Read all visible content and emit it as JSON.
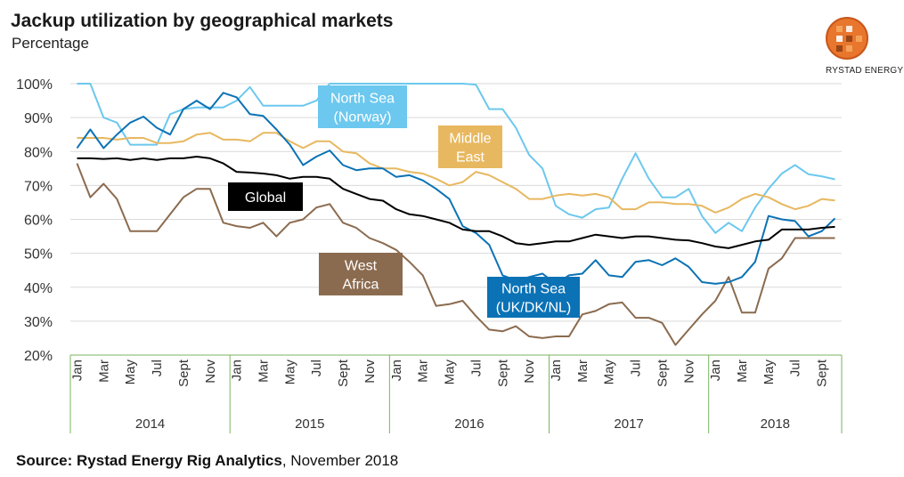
{
  "header": {
    "title": "Jackup utilization by geographical markets",
    "subtitle": "Percentage",
    "logo_text": "RYSTAD ENERGY"
  },
  "footer": {
    "source_bold": "Source: Rystad Energy Rig Analytics",
    "source_rest": ", November 2018"
  },
  "colors": {
    "global": "#000000",
    "north_sea_norway": "#6cc8ee",
    "middle_east": "#e8b860",
    "north_sea_uk": "#0b72b5",
    "west_africa": "#8b6b4f",
    "grid": "#d9d9d9",
    "axis": "#7ab55c"
  },
  "chart_data": {
    "type": "line",
    "title": "Jackup utilization by geographical markets",
    "ylabel": "Percentage",
    "xlabel": "",
    "ylim": [
      20,
      100
    ],
    "yticks": [
      "20%",
      "30%",
      "40%",
      "50%",
      "60%",
      "70%",
      "80%",
      "90%",
      "100%"
    ],
    "grid": true,
    "x_tick_labels": [
      "Jan",
      "Mar",
      "May",
      "Jul",
      "Sept",
      "Nov",
      "Jan",
      "Mar",
      "May",
      "Jul",
      "Sept",
      "Nov",
      "Jan",
      "Mar",
      "May",
      "Jul",
      "Sept",
      "Nov",
      "Jan",
      "Mar",
      "May",
      "Jul",
      "Sept",
      "Nov",
      "Jan",
      "Mar",
      "May",
      "Jul",
      "Sept"
    ],
    "years": [
      "2014",
      "2015",
      "2016",
      "2017",
      "2018"
    ],
    "months_per_year": 12,
    "n_points": 58,
    "series": [
      {
        "key": "north_sea_norway",
        "name": "North Sea (Norway)",
        "values": [
          100,
          100,
          90,
          88.5,
          82,
          82,
          82,
          91,
          92.5,
          93,
          93,
          93,
          95,
          99,
          93.5,
          93.5,
          93.5,
          93.5,
          95,
          100,
          100,
          100,
          100,
          100,
          100,
          100,
          100,
          100,
          100,
          100,
          99.7,
          92.5,
          92.5,
          87,
          79,
          75,
          64,
          61.5,
          60.5,
          63,
          63.5,
          72,
          79.5,
          72,
          66.5,
          66.5,
          69,
          61,
          56,
          59,
          56.5,
          63.5,
          69,
          73.5,
          76,
          73.3,
          72.7,
          71.8
        ]
      },
      {
        "key": "middle_east",
        "name": "Middle East",
        "values": [
          84,
          84,
          84,
          83.5,
          84,
          84,
          82.5,
          82.5,
          83,
          85,
          85.5,
          83.5,
          83.5,
          83,
          85.5,
          85.5,
          83,
          81,
          83,
          83,
          80,
          79.5,
          76.5,
          75,
          75,
          74,
          73.5,
          72,
          70,
          71,
          74,
          73,
          71,
          69,
          66,
          66,
          67,
          67.5,
          67,
          67.5,
          66.5,
          63,
          63,
          65,
          65,
          64.5,
          64.5,
          64,
          62,
          63.5,
          66,
          67.5,
          66.5,
          64.5,
          63,
          64,
          66,
          65.6
        ]
      },
      {
        "key": "north_sea_uk",
        "name": "North Sea (UK/DK/NL)",
        "values": [
          81,
          86.5,
          81,
          85,
          88.5,
          90.3,
          87,
          85,
          92.5,
          95,
          92.5,
          97.3,
          96,
          91,
          90.5,
          86.5,
          82,
          76,
          78.5,
          80.3,
          76,
          74.5,
          75,
          75,
          72.5,
          73,
          71.5,
          69,
          66,
          58,
          56,
          52.5,
          43.5,
          42,
          43,
          44,
          41,
          43.5,
          44,
          48,
          43.5,
          43,
          47.5,
          48,
          46.5,
          48.5,
          46,
          41.5,
          41,
          41.5,
          43,
          47.5,
          61,
          60,
          59.5,
          55,
          56.5,
          60.3
        ]
      },
      {
        "key": "global",
        "name": "Global",
        "values": [
          78,
          78,
          77.8,
          78,
          77.5,
          78,
          77.5,
          78,
          78,
          78.5,
          78,
          76.5,
          74,
          73.8,
          73.5,
          73,
          72,
          72.5,
          72.5,
          72,
          69,
          67.5,
          66,
          65.5,
          63,
          61.5,
          61,
          60,
          59,
          57,
          56.5,
          56.5,
          55,
          53,
          52.5,
          53,
          53.5,
          53.5,
          54.5,
          55.5,
          55,
          54.5,
          55,
          55,
          54.5,
          54,
          53.8,
          53,
          52,
          51.5,
          52.5,
          53.5,
          54,
          57,
          57,
          57,
          57.5,
          57.8
        ]
      },
      {
        "key": "west_africa",
        "name": "West Africa",
        "values": [
          76.5,
          66.5,
          70.5,
          66,
          56.5,
          56.5,
          56.5,
          61.5,
          66.5,
          69,
          69,
          59,
          58,
          57.5,
          59,
          55,
          59,
          60,
          63.5,
          64.5,
          59,
          57.5,
          54.5,
          53,
          51,
          47.5,
          43.5,
          34.5,
          35,
          36,
          31.5,
          27.5,
          27,
          28.5,
          25.5,
          25,
          25.5,
          25.5,
          32,
          33,
          35,
          35.5,
          31,
          31,
          29.5,
          23,
          27.5,
          32,
          36,
          43,
          32.5,
          32.5,
          45.5,
          48.5,
          54.5,
          54.5,
          54.5,
          54.5
        ]
      }
    ],
    "annotations": [
      {
        "series": "north_sea_norway",
        "lines": [
          "North Sea",
          "(Norway)"
        ]
      },
      {
        "series": "middle_east",
        "lines": [
          "Middle",
          "East"
        ]
      },
      {
        "series": "global",
        "lines": [
          "Global"
        ]
      },
      {
        "series": "west_africa",
        "lines": [
          "West",
          "Africa"
        ]
      },
      {
        "series": "north_sea_uk",
        "lines": [
          "North Sea",
          "(UK/DK/NL)"
        ]
      }
    ]
  }
}
